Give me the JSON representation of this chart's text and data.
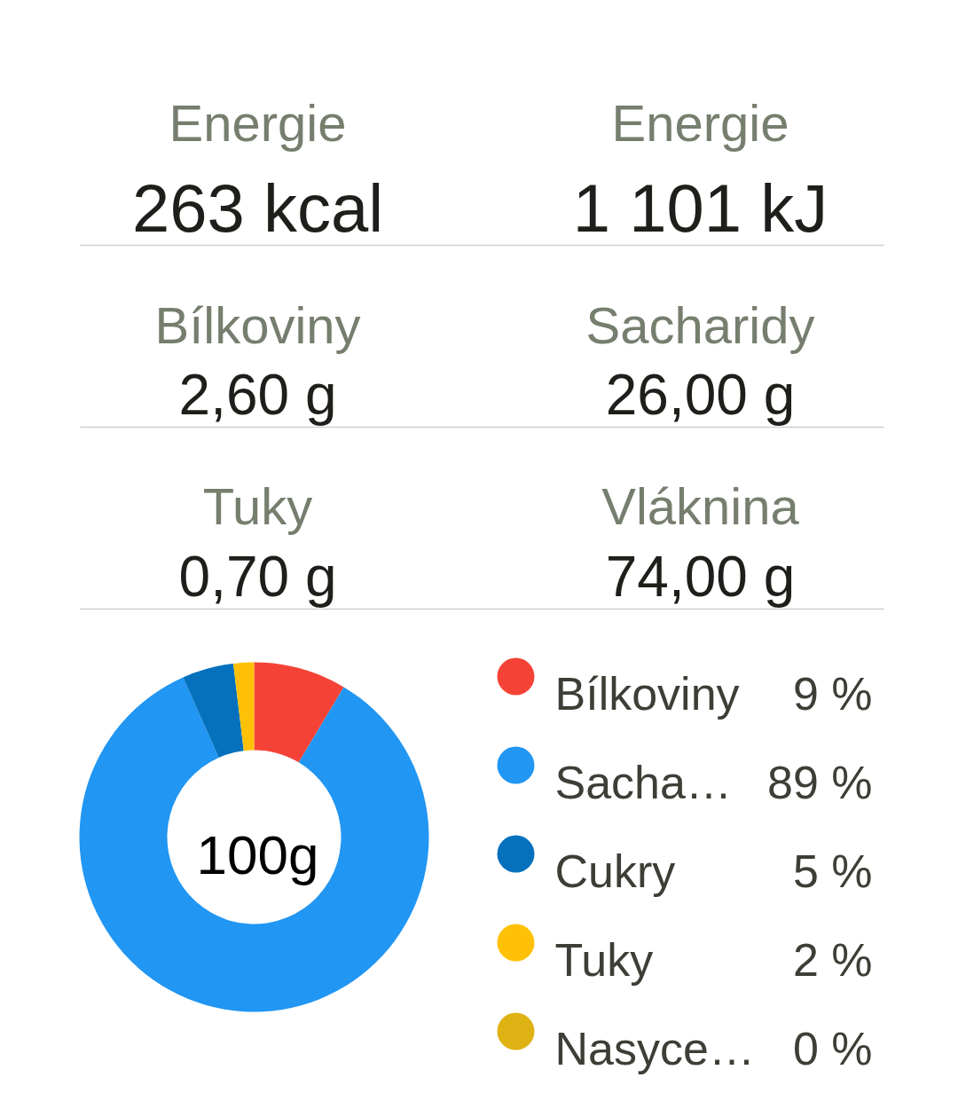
{
  "chart_data": [
    {
      "type": "other",
      "annotations": [
        "Energie",
        "263 kcal",
        "Energie",
        "1 101 kJ",
        "Bílkoviny",
        "2,60 g",
        "Sacharidy",
        "26,00 g",
        "Tuky",
        "0,70 g",
        "Vláknina",
        "74,00 g"
      ]
    },
    {
      "type": "donut",
      "categories": [
        "Bílkoviny",
        "Sacha…",
        "Cukry",
        "Tuky",
        "Nasyce…"
      ],
      "values": [
        9,
        89,
        5,
        2,
        0
      ],
      "colors": [
        "#f44336",
        "#2196f3",
        "#0571bd",
        "#ffc107",
        "#dfb214"
      ],
      "value_labels": [
        "9 %",
        "89 %",
        "5 %",
        "2 %",
        "0 %"
      ],
      "legend": "right",
      "annotations": [
        "100g"
      ]
    }
  ]
}
